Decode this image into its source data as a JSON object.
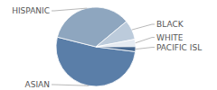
{
  "chart_data": {
    "type": "pie",
    "categories": [
      "ASIAN",
      "HISPANIC",
      "BLACK",
      "WHITE",
      "PACIFIC ISL"
    ],
    "values": [
      52,
      35,
      8,
      3,
      2
    ],
    "colors": [
      "#5a7ea8",
      "#8ea6bf",
      "#bccbdb",
      "#e4eaf1",
      "#45668e"
    ]
  }
}
